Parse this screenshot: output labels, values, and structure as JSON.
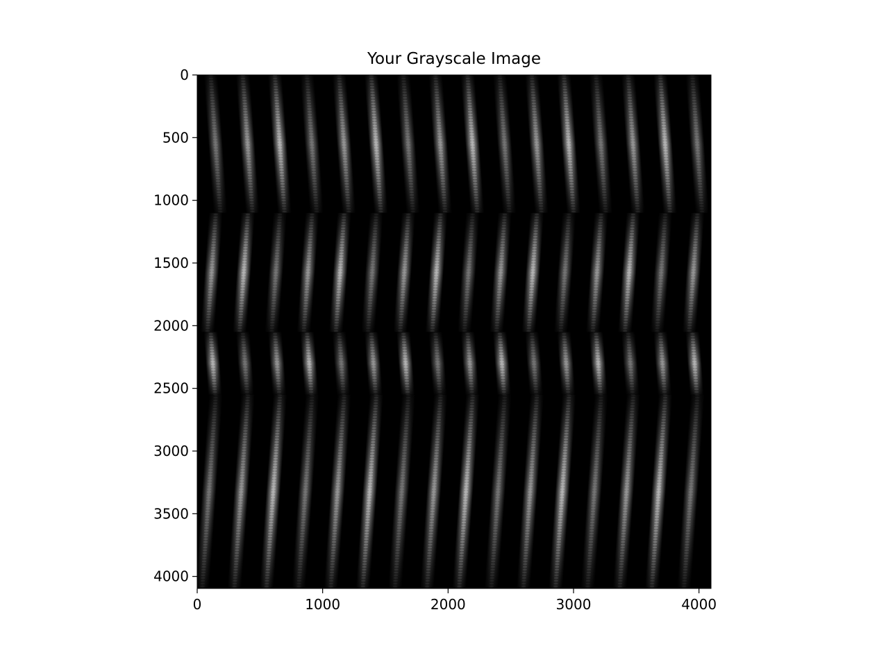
{
  "chart_data": {
    "type": "heatmap",
    "title": "Your Grayscale Image",
    "xlabel": "",
    "ylabel": "",
    "colormap": "gray",
    "xlim": [
      0,
      4096
    ],
    "ylim": [
      4096,
      0
    ],
    "xticks": [
      0,
      1000,
      2000,
      3000,
      4000
    ],
    "yticks": [
      0,
      500,
      1000,
      1500,
      2000,
      2500,
      3000,
      3500,
      4000
    ],
    "xtick_labels": [
      "0",
      "1000",
      "2000",
      "3000",
      "4000"
    ],
    "ytick_labels": [
      "0",
      "500",
      "1000",
      "1500",
      "2000",
      "2500",
      "3000",
      "3500",
      "4000"
    ],
    "image_width": 4096,
    "image_height": 4096,
    "pattern": {
      "stripe_count": 16,
      "stripe_period": 256,
      "row_bands": [
        {
          "y_start": 0,
          "y_end": 1100
        },
        {
          "y_start": 1100,
          "y_end": 2050
        },
        {
          "y_start": 2050,
          "y_end": 2550
        },
        {
          "y_start": 2550,
          "y_end": 4096
        }
      ],
      "max_intensity": 0.85
    },
    "grid": false,
    "legend": "none"
  }
}
